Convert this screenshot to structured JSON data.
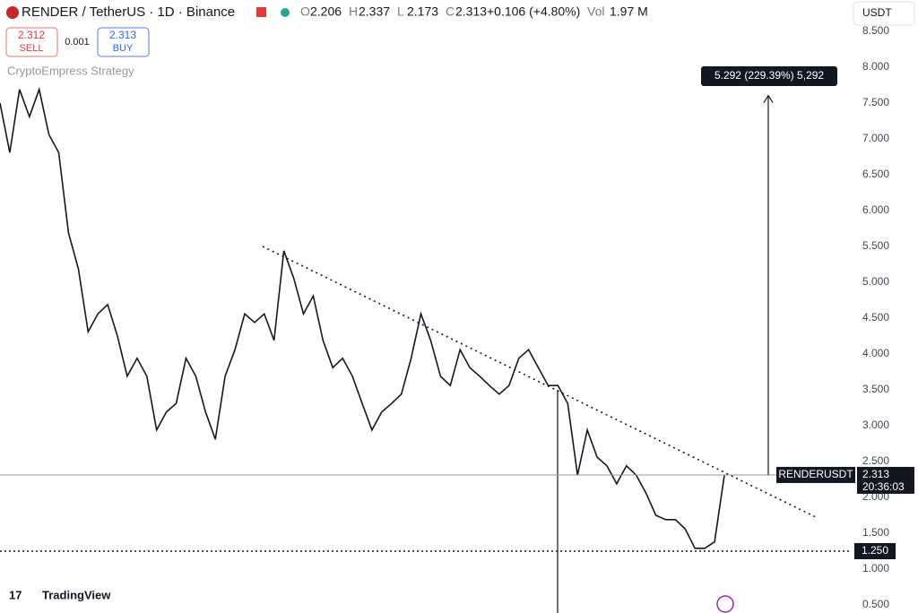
{
  "chart_data": {
    "type": "line",
    "header": {
      "symbol": "RENDER / TetherUS · 1D · Binance",
      "ohlc": [
        {
          "key": "O",
          "value": "2.206"
        },
        {
          "key": "H",
          "value": "2.337"
        },
        {
          "key": "L",
          "value": "2.173"
        },
        {
          "key": "C",
          "value": "2.313"
        }
      ],
      "change": "+0.106 (+4.80%)",
      "volume_key": "Vol",
      "volume": "1.97 M",
      "sell_price": "2.312",
      "sell": "SELL",
      "spread": "0.001",
      "buy_price": "2.313",
      "buy": "BUY",
      "indicator": "CryptoEmpress Strategy",
      "currency": "USDT",
      "logo": "TradingView"
    },
    "values": [
      7.5,
      6.81,
      7.69,
      7.31,
      7.69,
      7.06,
      6.81,
      5.69,
      5.19,
      4.31,
      4.56,
      4.69,
      4.25,
      3.69,
      3.94,
      3.69,
      2.94,
      3.19,
      3.31,
      3.94,
      3.69,
      3.19,
      2.81,
      3.69,
      4.06,
      4.56,
      4.44,
      4.56,
      4.19,
      5.44,
      5.06,
      4.56,
      4.81,
      4.19,
      3.81,
      3.94,
      3.69,
      3.31,
      2.94,
      3.19,
      3.31,
      3.44,
      3.94,
      4.56,
      4.19,
      3.69,
      3.56,
      4.06,
      3.81,
      3.69,
      3.56,
      3.44,
      3.56,
      3.94,
      4.06,
      3.81,
      3.56,
      3.56,
      3.31,
      2.31,
      2.94,
      2.56,
      2.44,
      2.19,
      2.44,
      2.31,
      2.06,
      1.75,
      1.69,
      1.69,
      1.56,
      1.29,
      1.29,
      1.38,
      2.31
    ],
    "color": "#131722",
    "ylim": [
      0.3875,
      8.9375
    ],
    "yticks": [
      {
        "value": 0.5,
        "label": "0.500"
      },
      {
        "value": 1,
        "label": "1.000"
      },
      {
        "value": 1.5,
        "label": "1.500"
      },
      {
        "value": 2,
        "label": "2.000"
      },
      {
        "value": 2.5,
        "label": "2.500"
      },
      {
        "value": 3,
        "label": "3.000"
      },
      {
        "value": 3.5,
        "label": "3.500"
      },
      {
        "value": 4,
        "label": "4.000"
      },
      {
        "value": 4.5,
        "label": "4.500"
      },
      {
        "value": 5,
        "label": "5.000"
      },
      {
        "value": 5.5,
        "label": "5.500"
      },
      {
        "value": 6,
        "label": "6.000"
      },
      {
        "value": 6.5,
        "label": "6.500"
      },
      {
        "value": 7,
        "label": "7.000"
      },
      {
        "value": 7.5,
        "label": "7.500"
      },
      {
        "value": 8,
        "label": "8.000"
      },
      {
        "value": 8.5,
        "label": "8.500"
      }
    ],
    "current_price": {
      "symbol": "RENDERUSDT",
      "value": 2.313,
      "label": "2.313",
      "countdown": "20:36:03"
    },
    "support": {
      "value": 1.25,
      "label": "1.250"
    },
    "measure": {
      "value": 5.292,
      "label": "5.292 (229.39%) 5,292"
    }
  }
}
